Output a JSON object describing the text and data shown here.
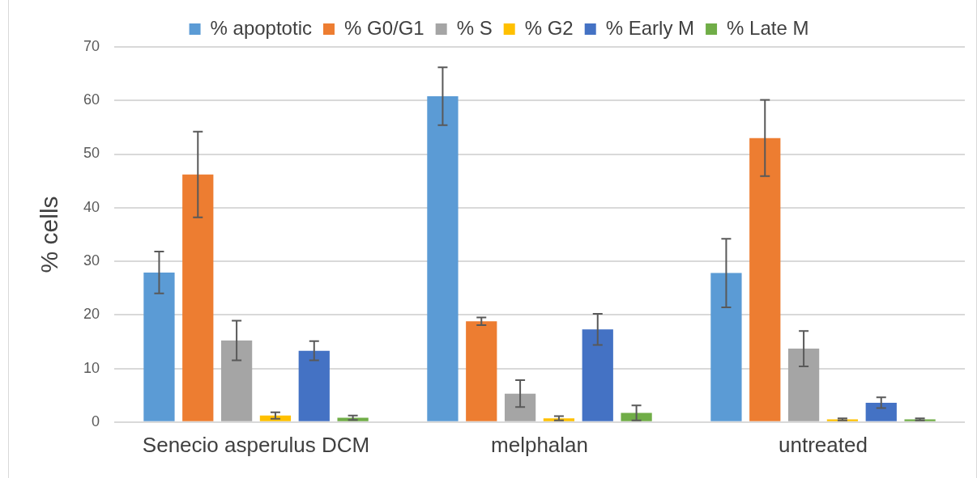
{
  "chart_data": {
    "type": "bar",
    "ylabel": "% cells",
    "categories": [
      "Senecio asperulus DCM",
      "melphalan",
      "untreated"
    ],
    "series": [
      {
        "name": "% apoptotic",
        "color": "#5b9bd5",
        "values": [
          27.9,
          60.8,
          27.8
        ],
        "errors": [
          3.9,
          5.4,
          6.4
        ]
      },
      {
        "name": "% G0/G1",
        "color": "#ed7d31",
        "values": [
          46.2,
          18.8,
          53.0
        ],
        "errors": [
          8.0,
          0.7,
          7.1
        ]
      },
      {
        "name": "% S",
        "color": "#a5a5a5",
        "values": [
          15.2,
          5.3,
          13.7
        ],
        "errors": [
          3.7,
          2.5,
          3.3
        ]
      },
      {
        "name": "% G2",
        "color": "#ffc000",
        "values": [
          1.2,
          0.7,
          0.5
        ],
        "errors": [
          0.6,
          0.4,
          0.2
        ]
      },
      {
        "name": "% Early M",
        "color": "#4472c4",
        "values": [
          13.3,
          17.3,
          3.6
        ],
        "errors": [
          1.8,
          2.9,
          1.0
        ]
      },
      {
        "name": "% Late M",
        "color": "#70ad47",
        "values": [
          0.8,
          1.7,
          0.5
        ],
        "errors": [
          0.4,
          1.4,
          0.2
        ]
      }
    ],
    "ylim": [
      0,
      70
    ],
    "yticks": [
      0,
      10,
      20,
      30,
      40,
      50,
      60,
      70
    ],
    "grid": "y",
    "legend": "top"
  }
}
